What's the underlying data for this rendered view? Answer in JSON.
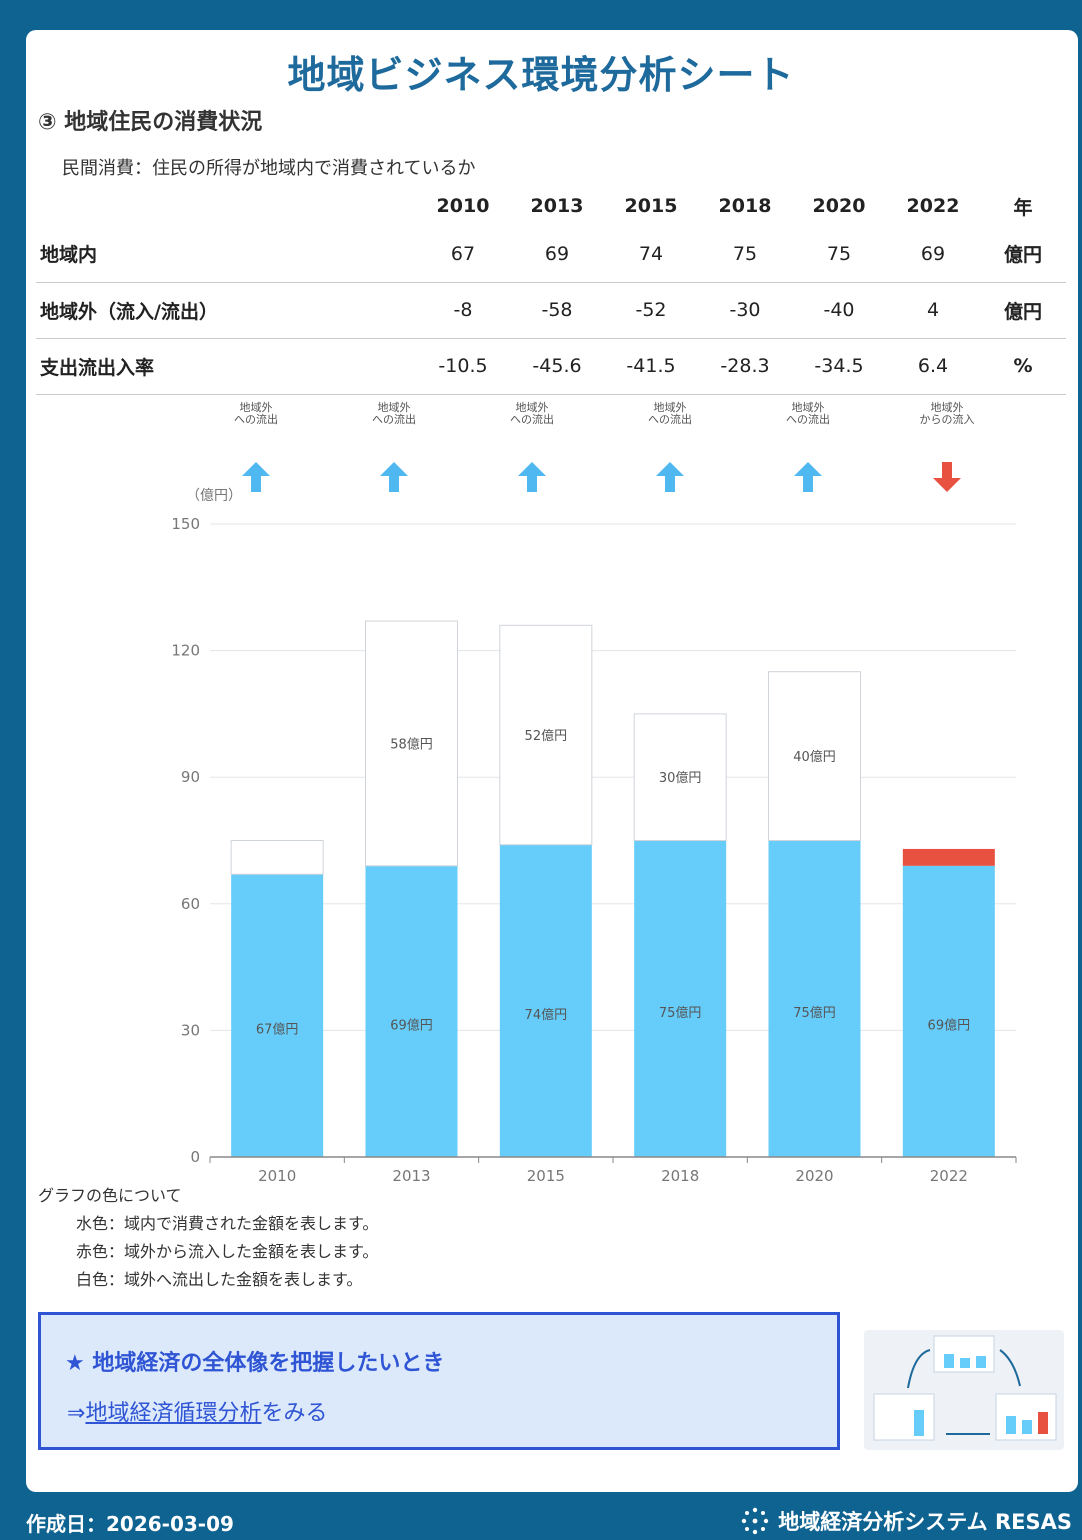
{
  "page": {
    "title": "地域ビジネス環境分析シート",
    "section_title": "③ 地域住民の消費状況",
    "subtitle": "民間消費：住民の所得が地域内で消費されているか"
  },
  "table": {
    "header_unit": "年",
    "years": [
      "2010",
      "2013",
      "2015",
      "2018",
      "2020",
      "2022"
    ],
    "rows": [
      {
        "label": "地域内",
        "values": [
          "67",
          "69",
          "74",
          "75",
          "75",
          "69"
        ],
        "unit": "億円"
      },
      {
        "label": "地域外（流入/流出）",
        "values": [
          "-8",
          "-58",
          "-52",
          "-30",
          "-40",
          "4"
        ],
        "unit": "億円"
      },
      {
        "label": "支出流出入率",
        "values": [
          "-10.5",
          "-45.6",
          "-41.5",
          "-28.3",
          "-34.5",
          "6.4"
        ],
        "unit": "%"
      }
    ]
  },
  "flow_labels": [
    {
      "line1": "地域外",
      "line2": "への流出",
      "direction": "up",
      "color": "#4fb8f0"
    },
    {
      "line1": "地域外",
      "line2": "への流出",
      "direction": "up",
      "color": "#4fb8f0"
    },
    {
      "line1": "地域外",
      "line2": "への流出",
      "direction": "up",
      "color": "#4fb8f0"
    },
    {
      "line1": "地域外",
      "line2": "への流出",
      "direction": "up",
      "color": "#4fb8f0"
    },
    {
      "line1": "地域外",
      "line2": "への流出",
      "direction": "up",
      "color": "#4fb8f0"
    },
    {
      "line1": "地域外",
      "line2": "からの流入",
      "direction": "down",
      "color": "#e8503f"
    }
  ],
  "chart_data": {
    "type": "bar",
    "stacked": true,
    "categories": [
      "2010",
      "2013",
      "2015",
      "2018",
      "2020",
      "2022"
    ],
    "y_unit_label": "（億円）",
    "ylim": [
      0,
      150
    ],
    "yticks": [
      0,
      30,
      60,
      90,
      120,
      150
    ],
    "grid": true,
    "series": [
      {
        "key": "inside",
        "values": [
          67,
          69,
          74,
          75,
          75,
          69
        ],
        "labels": [
          "67億円",
          "69億円",
          "74億円",
          "75億円",
          "75億円",
          "69億円"
        ],
        "color": "#66cdfb"
      },
      {
        "key": "inflow",
        "values": [
          0,
          0,
          0,
          0,
          0,
          4
        ],
        "labels": [
          "",
          "",
          "",
          "",
          "",
          ""
        ],
        "color": "#e8503f"
      },
      {
        "key": "outflow",
        "values": [
          8,
          58,
          52,
          30,
          40,
          0
        ],
        "labels": [
          "",
          "58億円",
          "52億円",
          "30億円",
          "40億円",
          ""
        ],
        "color": "#ffffff"
      }
    ]
  },
  "legend": {
    "title": "グラフの色について",
    "items": [
      "水色：域内で消費された金額を表します。",
      "赤色：域外から流入した金額を表します。",
      "白色：域外へ流出した金額を表します。"
    ]
  },
  "cta": {
    "line1": "★ 地域経済の全体像を把握したいとき",
    "arrow": "⇒",
    "link": "地域経済循環分析",
    "suffix": "をみる"
  },
  "footer": {
    "date": "作成日：2026-03-09",
    "brand": "地域経済分析システム RESAS"
  },
  "colors": {
    "background": "#0f6391",
    "title": "#1e6a9c",
    "accent": "#2f55d4"
  }
}
